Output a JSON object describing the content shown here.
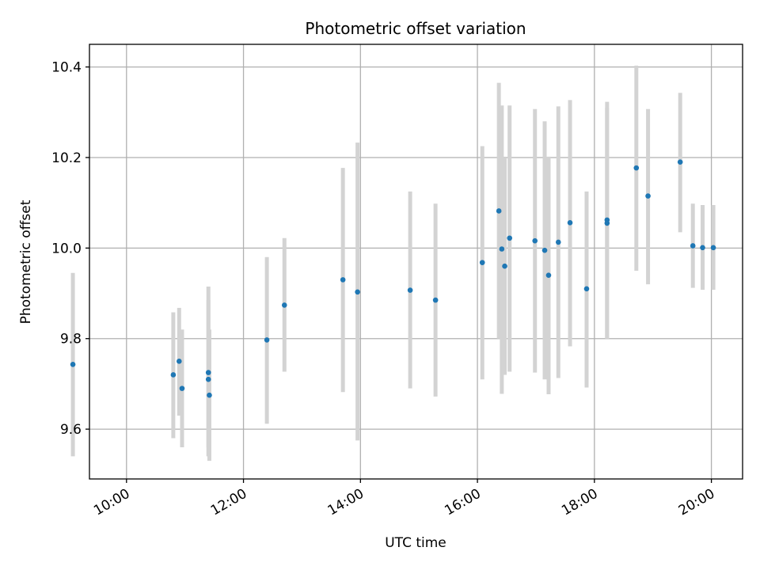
{
  "chart_data": {
    "type": "scatter",
    "title": "Photometric offset variation",
    "xlabel": "UTC time",
    "ylabel": "Photometric offset",
    "x_axis": {
      "kind": "time",
      "range": [
        "09:22",
        "20:32"
      ],
      "ticks": [
        "10:00",
        "12:00",
        "14:00",
        "16:00",
        "18:00",
        "20:00"
      ]
    },
    "y_axis": {
      "range": [
        9.49,
        10.45
      ],
      "ticks": [
        "9.6",
        "9.8",
        "10.0",
        "10.2",
        "10.4"
      ]
    },
    "grid": true,
    "legend": "none",
    "colors": {
      "point": "#1f77b4",
      "errorbar": "#d3d3d3"
    },
    "points": [
      {
        "t": "09:05",
        "y": 9.743,
        "lo": 9.54,
        "hi": 9.945
      },
      {
        "t": "10:48",
        "y": 9.72,
        "lo": 9.58,
        "hi": 9.858
      },
      {
        "t": "10:54",
        "y": 9.75,
        "lo": 9.63,
        "hi": 9.868
      },
      {
        "t": "10:57",
        "y": 9.69,
        "lo": 9.56,
        "hi": 9.82
      },
      {
        "t": "11:24",
        "y": 9.725,
        "lo": 9.56,
        "hi": 9.915
      },
      {
        "t": "11:24",
        "y": 9.71,
        "lo": 9.54,
        "hi": 9.885
      },
      {
        "t": "11:25",
        "y": 9.675,
        "lo": 9.53,
        "hi": 9.82
      },
      {
        "t": "12:24",
        "y": 9.797,
        "lo": 9.612,
        "hi": 9.98
      },
      {
        "t": "12:42",
        "y": 9.874,
        "lo": 9.727,
        "hi": 10.022
      },
      {
        "t": "13:42",
        "y": 9.93,
        "lo": 9.682,
        "hi": 10.177
      },
      {
        "t": "13:57",
        "y": 9.903,
        "lo": 9.575,
        "hi": 10.233
      },
      {
        "t": "14:51",
        "y": 9.907,
        "lo": 9.69,
        "hi": 10.125
      },
      {
        "t": "15:17",
        "y": 9.885,
        "lo": 9.672,
        "hi": 10.098
      },
      {
        "t": "16:05",
        "y": 9.968,
        "lo": 9.71,
        "hi": 10.225
      },
      {
        "t": "16:22",
        "y": 10.082,
        "lo": 9.8,
        "hi": 10.365
      },
      {
        "t": "16:25",
        "y": 9.998,
        "lo": 9.678,
        "hi": 10.315
      },
      {
        "t": "16:28",
        "y": 9.96,
        "lo": 9.72,
        "hi": 10.2
      },
      {
        "t": "16:33",
        "y": 10.022,
        "lo": 9.727,
        "hi": 10.315
      },
      {
        "t": "16:59",
        "y": 10.016,
        "lo": 9.725,
        "hi": 10.307
      },
      {
        "t": "17:09",
        "y": 9.995,
        "lo": 9.71,
        "hi": 10.28
      },
      {
        "t": "17:13",
        "y": 9.94,
        "lo": 9.677,
        "hi": 10.202
      },
      {
        "t": "17:23",
        "y": 10.013,
        "lo": 9.713,
        "hi": 10.313
      },
      {
        "t": "17:35",
        "y": 10.056,
        "lo": 9.783,
        "hi": 10.327
      },
      {
        "t": "17:52",
        "y": 9.91,
        "lo": 9.692,
        "hi": 10.125
      },
      {
        "t": "18:13",
        "y": 10.062,
        "lo": 9.8,
        "hi": 10.323
      },
      {
        "t": "18:13",
        "y": 10.055,
        "lo": 9.8,
        "hi": 10.31
      },
      {
        "t": "18:43",
        "y": 10.177,
        "lo": 9.95,
        "hi": 10.403
      },
      {
        "t": "18:55",
        "y": 10.115,
        "lo": 9.92,
        "hi": 10.307
      },
      {
        "t": "19:28",
        "y": 10.19,
        "lo": 10.035,
        "hi": 10.343
      },
      {
        "t": "19:41",
        "y": 10.005,
        "lo": 9.912,
        "hi": 10.098
      },
      {
        "t": "19:51",
        "y": 10.001,
        "lo": 9.908,
        "hi": 10.095
      },
      {
        "t": "20:02",
        "y": 10.001,
        "lo": 9.908,
        "hi": 10.095
      }
    ]
  }
}
